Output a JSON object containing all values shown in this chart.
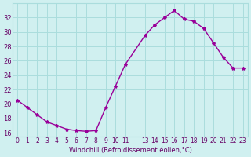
{
  "x": [
    0,
    1,
    2,
    3,
    4,
    5,
    6,
    7,
    8,
    9,
    10,
    11,
    13,
    14,
    15,
    16,
    17,
    18,
    19,
    20,
    21,
    22,
    23
  ],
  "y": [
    20.5,
    19.5,
    18.5,
    17.5,
    17.0,
    16.5,
    16.3,
    16.2,
    16.3,
    19.5,
    22.5,
    25.5,
    29.5,
    31.0,
    32.0,
    33.0,
    31.8,
    31.5,
    30.5,
    28.5,
    26.5,
    25.0,
    25.0
  ],
  "xlabel": "Windchill (Refroidissement éolien,°C)",
  "xlim": [
    -0.5,
    23.5
  ],
  "ylim": [
    15.5,
    34
  ],
  "xticks": [
    0,
    1,
    2,
    3,
    4,
    5,
    6,
    7,
    8,
    9,
    10,
    11,
    13,
    14,
    15,
    16,
    17,
    18,
    19,
    20,
    21,
    22,
    23
  ],
  "yticks": [
    16,
    18,
    20,
    22,
    24,
    26,
    28,
    30,
    32
  ],
  "line_color": "#990099",
  "marker": "*",
  "bg_color": "#d0f0f0",
  "grid_color": "#aadddd",
  "font_color": "#660066"
}
